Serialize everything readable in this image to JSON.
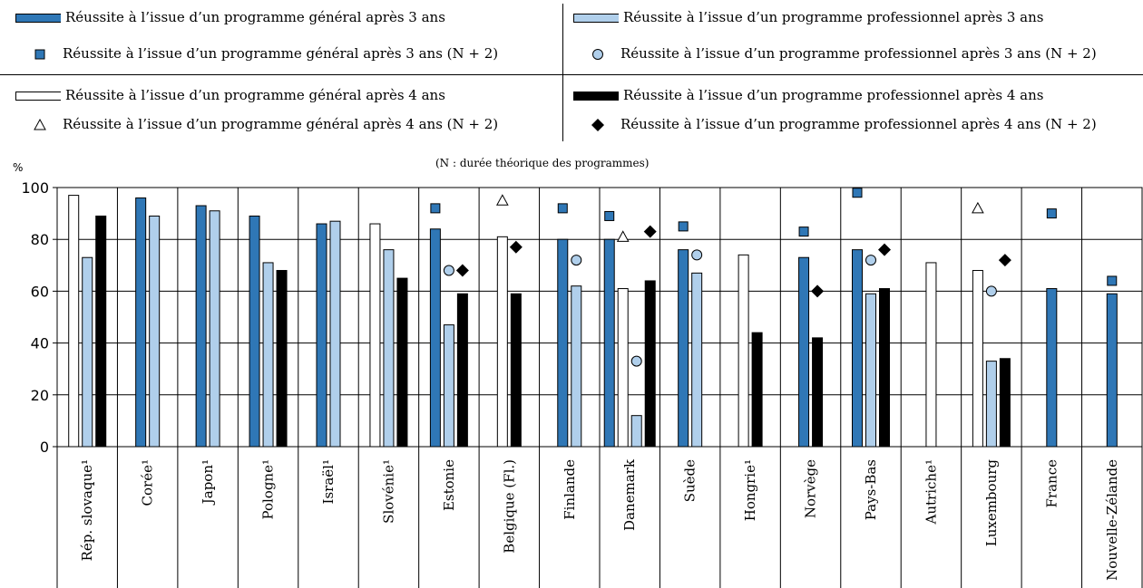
{
  "legend": {
    "items": [
      {
        "label": "Réussite à l’issue d’un programme général après 3 ans",
        "marker": "bar-dark-blue"
      },
      {
        "label": "Réussite à l’issue d’un programme général après 3 ans (N + 2)",
        "marker": "square-dark-blue"
      },
      {
        "label": "Réussite à l’issue d’un programme général après 4 ans",
        "marker": "bar-white"
      },
      {
        "label": "Réussite à l’issue d’un programme général après 4 ans (N + 2)",
        "marker": "triangle-white"
      },
      {
        "label": "Réussite à l’issue d’un programme professionnel après 3 ans",
        "marker": "bar-light-blue"
      },
      {
        "label": "Réussite à l’issue d’un programme professionnel après 3 ans (N + 2)",
        "marker": "circle-light-blue"
      },
      {
        "label": "Réussite à l’issue d’un programme professionnel après 4 ans",
        "marker": "bar-black"
      },
      {
        "label": "Réussite à l’issue d’un programme professionnel après 4 ans (N + 2)",
        "marker": "diamond-black"
      }
    ]
  },
  "note": "(N : durée théorique des programmes)",
  "colors": {
    "dark_blue": "#2f77b6",
    "light_blue": "#b0cfeb",
    "white": "#ffffff",
    "black": "#000000"
  },
  "chart_data": {
    "type": "bar",
    "ylabel": "%",
    "ylim": [
      0,
      100
    ],
    "yticks": [
      0,
      20,
      40,
      60,
      80,
      100
    ],
    "grid": true,
    "categories": [
      "Rép. slovaque¹",
      "Corée¹",
      "Japon¹",
      "Pologne¹",
      "Israël¹",
      "Slovénie¹",
      "Estonie",
      "Belgique (Fl.)",
      "Finlande",
      "Danemark",
      "Suède",
      "Hongrie¹",
      "Norvège",
      "Pays-Bas",
      "Autriche¹",
      "Luxembourg",
      "France",
      "Nouvelle-Zélande"
    ],
    "series": [
      {
        "name": "Réussite à l’issue d’un programme général après 3 ans",
        "kind": "bar",
        "color": "#2f77b6",
        "values": [
          null,
          96,
          93,
          89,
          86,
          null,
          84,
          null,
          80,
          80,
          76,
          null,
          73,
          76,
          null,
          null,
          61,
          59
        ]
      },
      {
        "name": "Réussite à l’issue d’un programme général après 4 ans",
        "kind": "bar",
        "color": "#ffffff",
        "values": [
          97,
          null,
          null,
          null,
          null,
          86,
          null,
          81,
          null,
          61,
          null,
          74,
          null,
          null,
          71,
          68,
          null,
          null
        ]
      },
      {
        "name": "Réussite à l’issue d’un programme professionnel après 3 ans",
        "kind": "bar",
        "color": "#b0cfeb",
        "values": [
          73,
          89,
          91,
          71,
          87,
          76,
          47,
          null,
          62,
          12,
          67,
          null,
          null,
          59,
          null,
          33,
          null,
          null
        ]
      },
      {
        "name": "Réussite à l’issue d’un programme professionnel après 4 ans",
        "kind": "bar",
        "color": "#000000",
        "values": [
          89,
          null,
          null,
          68,
          null,
          65,
          59,
          59,
          null,
          64,
          null,
          44,
          42,
          61,
          null,
          34,
          null,
          null
        ]
      },
      {
        "name": "Réussite à l’issue d’un programme général après 3 ans (N + 2)",
        "kind": "square",
        "color": "#2f77b6",
        "values": [
          null,
          null,
          null,
          null,
          null,
          null,
          92,
          null,
          92,
          89,
          85,
          null,
          83,
          98,
          null,
          null,
          90,
          64
        ]
      },
      {
        "name": "Réussite à l’issue d’un programme général après 4 ans (N + 2)",
        "kind": "triangle",
        "color": "#ffffff",
        "values": [
          null,
          null,
          null,
          null,
          null,
          null,
          null,
          95,
          null,
          81,
          null,
          null,
          null,
          null,
          null,
          92,
          null,
          null
        ]
      },
      {
        "name": "Réussite à l’issue d’un programme professionnel après 3 ans (N + 2)",
        "kind": "circle",
        "color": "#b0cfeb",
        "values": [
          null,
          null,
          null,
          null,
          null,
          null,
          68,
          null,
          72,
          33,
          74,
          null,
          null,
          72,
          null,
          60,
          null,
          null
        ]
      },
      {
        "name": "Réussite à l’issue d’un programme professionnel après 4 ans (N + 2)",
        "kind": "diamond",
        "color": "#000000",
        "values": [
          null,
          null,
          null,
          null,
          null,
          null,
          68,
          77,
          null,
          83,
          null,
          null,
          60,
          76,
          null,
          72,
          null,
          null
        ]
      }
    ]
  }
}
